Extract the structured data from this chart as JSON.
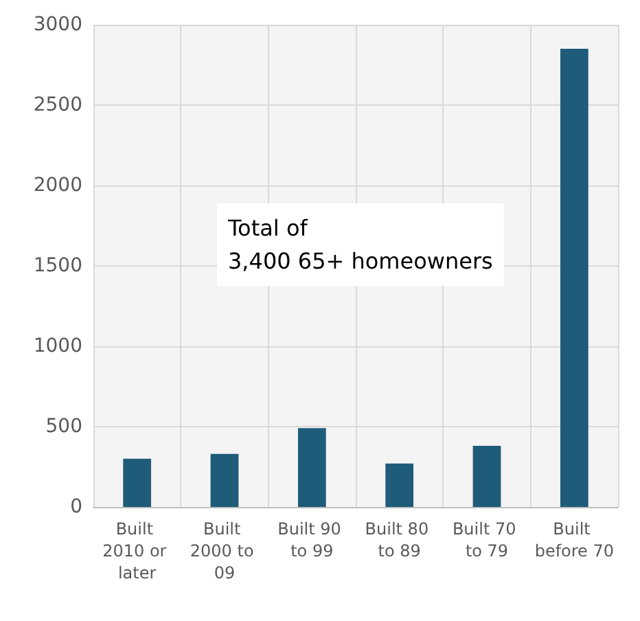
{
  "chart_data": {
    "type": "bar",
    "categories": [
      "Built 2010 or later",
      "Built 2000 to 09",
      "Built 90 to 99",
      "Built 80 to 89",
      "Built 70 to 79",
      "Built before 70"
    ],
    "values": [
      300,
      330,
      490,
      270,
      380,
      2850
    ],
    "color": "#1f5c7a",
    "ylim": [
      0,
      3000
    ],
    "yticks": [
      0,
      500,
      1000,
      1500,
      2000,
      2500,
      3000
    ],
    "grid": true,
    "annotations": [
      "Total of\n3,400 65+ homeowners"
    ]
  }
}
